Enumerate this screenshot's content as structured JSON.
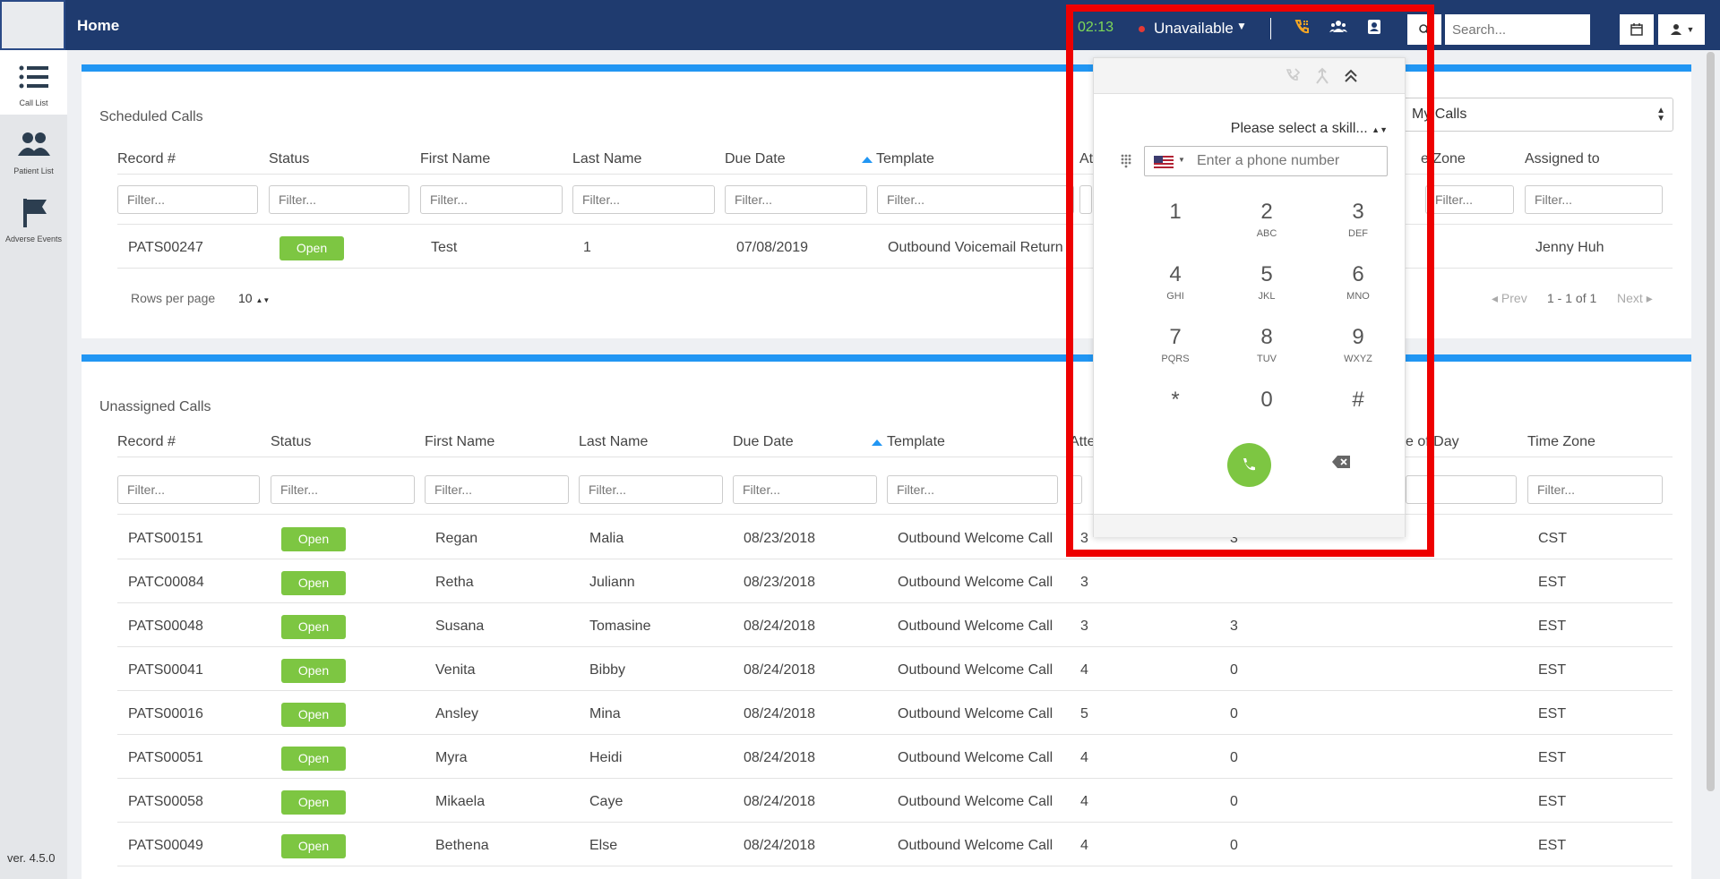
{
  "topbar": {
    "home_title": "Home",
    "timer": "02:13",
    "status": "Unavailable",
    "status_color": "#e53935",
    "search_placeholder": "Search..."
  },
  "sidebar": {
    "items": [
      {
        "label": "Call List",
        "icon": "list-icon"
      },
      {
        "label": "Patient List",
        "icon": "users-icon"
      },
      {
        "label": "Adverse Events",
        "icon": "flag-icon"
      }
    ],
    "version": "ver. 4.5.0"
  },
  "scheduled": {
    "title": "Scheduled Calls",
    "filter_select": "My Calls",
    "headers": [
      "Record #",
      "Status",
      "First Name",
      "Last Name",
      "Due Date",
      "Template",
      "At",
      "e Zone",
      "Assigned to"
    ],
    "filter_placeholder": "Filter...",
    "rows": [
      {
        "record": "PATS00247",
        "status": "Open",
        "first": "Test",
        "last": "1",
        "due": "07/08/2019",
        "template": "Outbound Voicemail Return",
        "assigned": "Jenny Huh"
      }
    ],
    "rows_per_page_label": "Rows per page",
    "rows_per_page": "10",
    "prev": "Prev",
    "range": "1 - 1 of 1",
    "next": "Next"
  },
  "unassigned": {
    "title": "Unassigned Calls",
    "headers": [
      "Record #",
      "Status",
      "First Name",
      "Last Name",
      "Due Date",
      "Template",
      "Atte",
      "e of Day",
      "Time Zone"
    ],
    "filter_placeholder": "Filter...",
    "rows": [
      {
        "record": "PATS00151",
        "status": "Open",
        "first": "Regan",
        "last": "Malia",
        "due": "08/23/2018",
        "template": "Outbound Welcome Call",
        "att": "3",
        "day": "3",
        "tz": "CST"
      },
      {
        "record": "PATC00084",
        "status": "Open",
        "first": "Retha",
        "last": "Juliann",
        "due": "08/23/2018",
        "template": "Outbound Welcome Call",
        "att": "3",
        "day": "",
        "tz": "EST"
      },
      {
        "record": "PATS00048",
        "status": "Open",
        "first": "Susana",
        "last": "Tomasine",
        "due": "08/24/2018",
        "template": "Outbound Welcome Call",
        "att": "3",
        "day": "3",
        "tz": "EST"
      },
      {
        "record": "PATS00041",
        "status": "Open",
        "first": "Venita",
        "last": "Bibby",
        "due": "08/24/2018",
        "template": "Outbound Welcome Call",
        "att": "4",
        "day": "0",
        "tz": "EST"
      },
      {
        "record": "PATS00016",
        "status": "Open",
        "first": "Ansley",
        "last": "Mina",
        "due": "08/24/2018",
        "template": "Outbound Welcome Call",
        "att": "5",
        "day": "0",
        "tz": "EST"
      },
      {
        "record": "PATS00051",
        "status": "Open",
        "first": "Myra",
        "last": "Heidi",
        "due": "08/24/2018",
        "template": "Outbound Welcome Call",
        "att": "4",
        "day": "0",
        "tz": "EST"
      },
      {
        "record": "PATS00058",
        "status": "Open",
        "first": "Mikaela",
        "last": "Caye",
        "due": "08/24/2018",
        "template": "Outbound Welcome Call",
        "att": "4",
        "day": "0",
        "tz": "EST"
      },
      {
        "record": "PATS00049",
        "status": "Open",
        "first": "Bethena",
        "last": "Else",
        "due": "08/24/2018",
        "template": "Outbound Welcome Call",
        "att": "4",
        "day": "0",
        "tz": "EST"
      }
    ]
  },
  "dialer": {
    "skill": "Please select a skill...",
    "phone_placeholder": "Enter a phone number",
    "keys": [
      {
        "digit": "1",
        "letters": ""
      },
      {
        "digit": "2",
        "letters": "ABC"
      },
      {
        "digit": "3",
        "letters": "DEF"
      },
      {
        "digit": "4",
        "letters": "GHI"
      },
      {
        "digit": "5",
        "letters": "JKL"
      },
      {
        "digit": "6",
        "letters": "MNO"
      },
      {
        "digit": "7",
        "letters": "PQRS"
      },
      {
        "digit": "8",
        "letters": "TUV"
      },
      {
        "digit": "9",
        "letters": "WXYZ"
      },
      {
        "digit": "*",
        "letters": ""
      },
      {
        "digit": "0",
        "letters": ""
      },
      {
        "digit": "#",
        "letters": ""
      }
    ]
  },
  "colors": {
    "topbar": "#1f3b6f",
    "accent": "#2196f3",
    "badge": "#7dc642",
    "highlight": "#ee0000"
  }
}
